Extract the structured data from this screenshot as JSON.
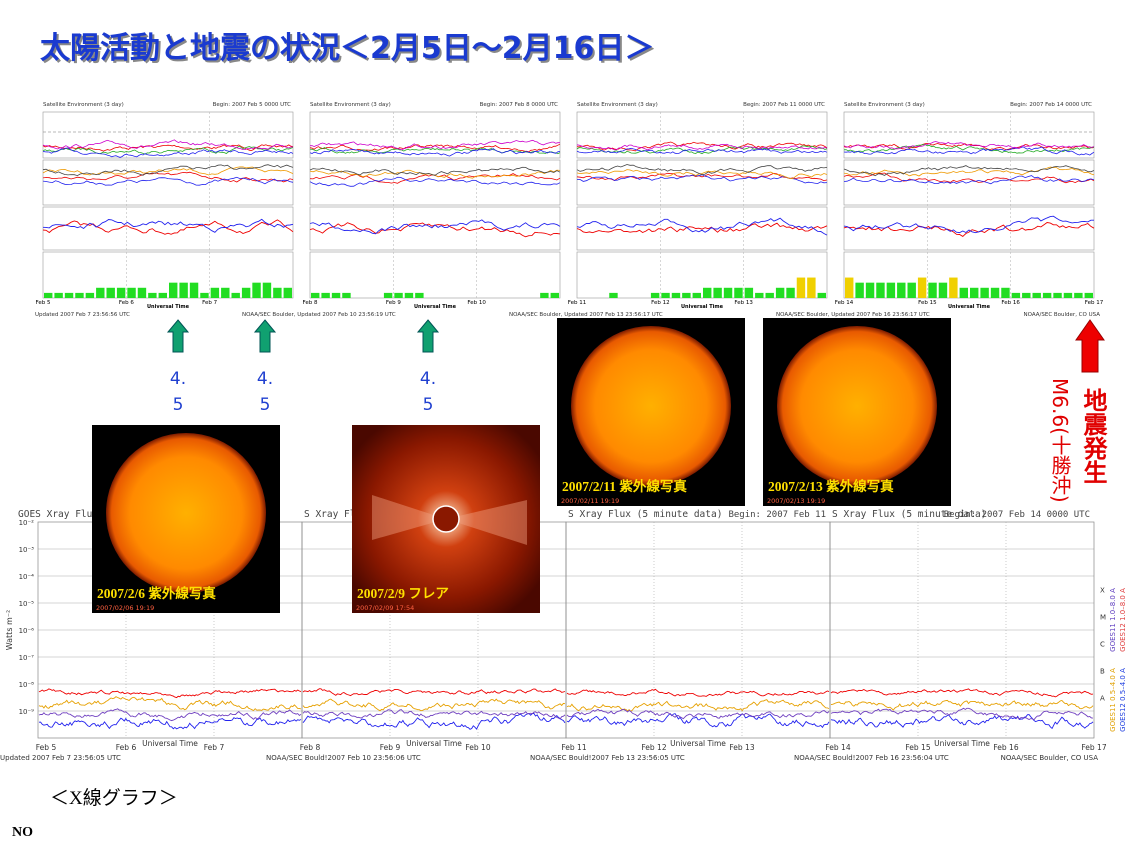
{
  "title": "太陽活動と地震の状況＜2月5日～2月16日＞",
  "upper_panels": [
    {
      "header_left": "Satellite Environment (3 day)",
      "header_right": "Begin: 2007 Feb 5 0000 UTC",
      "xlabels": [
        "Feb 5",
        "Feb 6",
        "Feb 7"
      ],
      "axis_label": "Universal Time",
      "footer": "Updated 2007 Feb 7 23:56:56 UTC",
      "kp": [
        1,
        1,
        1,
        1,
        1,
        2,
        2,
        2,
        2,
        2,
        1,
        1,
        3,
        3,
        3,
        1,
        2,
        2,
        1,
        2,
        3,
        3,
        2,
        2
      ]
    },
    {
      "header_left": "Satellite Environment (3 day)",
      "header_right": "Begin: 2007 Feb 8 0000 UTC",
      "xlabels": [
        "Feb 8",
        "Feb 9",
        "Feb 10"
      ],
      "axis_label": "Universal Time",
      "footer": "NOAA/SEC Boulder, Updated 2007 Feb 10 23:56:19 UTC",
      "kp": [
        1,
        1,
        1,
        1,
        0,
        0,
        0,
        1,
        1,
        1,
        1,
        0,
        0,
        0,
        0,
        0,
        0,
        0,
        0,
        0,
        0,
        0,
        1,
        1
      ]
    },
    {
      "header_left": "Satellite Environment (3 day)",
      "header_right": "Begin: 2007 Feb 11 0000 UTC",
      "xlabels": [
        "Feb 11",
        "Feb 12",
        "Feb 13"
      ],
      "axis_label": "Universal Time",
      "footer": "NOAA/SEC Boulder, Updated 2007 Feb 13 23:56:17 UTC",
      "kp": [
        0,
        0,
        0,
        1,
        0,
        0,
        0,
        1,
        1,
        1,
        1,
        1,
        2,
        2,
        2,
        2,
        2,
        1,
        1,
        2,
        2,
        4,
        4,
        1
      ]
    },
    {
      "header_left": "Satellite Environment (3 day)",
      "header_right": "Begin: 2007 Feb 14 0000 UTC",
      "xlabels": [
        "Feb 14",
        "Feb 15",
        "Feb 16",
        "Feb 17"
      ],
      "axis_label": "Universal Time",
      "footer": "NOAA/SEC Boulder, Updated 2007 Feb 16 23:56:17 UTC",
      "kp": [
        4,
        3,
        3,
        3,
        3,
        3,
        3,
        4,
        3,
        3,
        4,
        2,
        2,
        2,
        2,
        2,
        1,
        1,
        1,
        1,
        1,
        1,
        1,
        1
      ]
    }
  ],
  "upper_footer_right": "NOAA/SEC Boulder, CO USA",
  "arrow_labels": [
    [
      "4.",
      "5"
    ],
    [
      "4.",
      "5"
    ],
    [
      "4.",
      "5"
    ]
  ],
  "quake": {
    "title": "地震発生",
    "detail": "M6.6(十勝沖)"
  },
  "photos": [
    {
      "caption": "2007/2/6 紫外線写真",
      "stamp": "2007/02/06 19:19"
    },
    {
      "caption": "2007/2/9 フレア",
      "stamp": "2007/02/09 17:54"
    },
    {
      "caption": "2007/2/11 紫外線写真",
      "stamp": "2007/02/11 19:19"
    },
    {
      "caption": "2007/2/13 紫外線写真",
      "stamp": "2007/02/13 19:19"
    }
  ],
  "xray_panels": [
    {
      "title": "GOES Xray Flux",
      "xlabels": [
        "Feb 5",
        "Feb 6",
        "Feb 7"
      ],
      "footer": "Updated 2007 Feb  7 23:56:05 UTC"
    },
    {
      "title": "S Xray Flux",
      "xlabels": [
        "Feb 8",
        "Feb 9",
        "Feb 10"
      ],
      "footer": "NOAA/SEC Bould!2007 Feb 10 23:56:06 UTC"
    },
    {
      "title": "S Xray Flux (5 minute data)",
      "begin": "Begin:  2007 Feb 11",
      "xlabels": [
        "Feb 11",
        "Feb 12",
        "Feb 13"
      ],
      "footer": "NOAA/SEC Bould!2007 Feb 13 23:56:05 UTC"
    },
    {
      "title": "S Xray Flux (5 minute data)",
      "begin": "Begin:  2007 Feb 14 0000 UTC",
      "xlabels": [
        "Feb 14",
        "Feb 15",
        "Feb 16",
        "Feb 17"
      ],
      "footer": "NOAA/SEC Bould!2007 Feb 16 23:56:04 UTC"
    }
  ],
  "xray_axis_label": "Universal Time",
  "xray_footer_right": "NOAA/SEC Boulder, CO USA",
  "xray_ylabel": "Watts m⁻²",
  "xray_yticks": [
    "10⁻²",
    "10⁻³",
    "10⁻⁴",
    "10⁻⁵",
    "10⁻⁶",
    "10⁻⁷",
    "10⁻⁸",
    "10⁻⁹"
  ],
  "xray_classes": [
    "X",
    "M",
    "C",
    "B",
    "A"
  ],
  "xray_legend": [
    "GOES11 1.0–8.0 A",
    "GOES12 1.0–8.0 A",
    "GOES11 0.5–4.0 A",
    "GOES12 0.5–4.0 A"
  ],
  "caption": "＜X線グラフ＞",
  "note": "NO"
}
